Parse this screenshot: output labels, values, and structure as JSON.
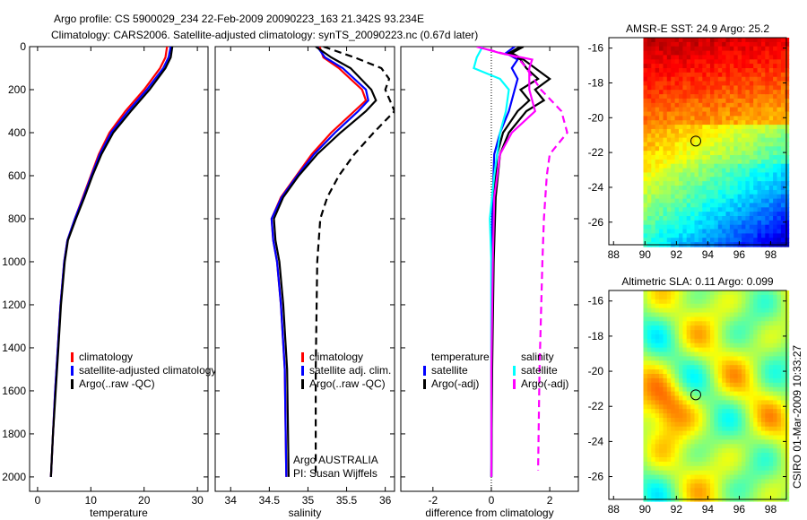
{
  "title_line1": "Argo profile: CS 5900029_234 22-Feb-2009 20090223_163 21.342S 93.234E",
  "title_line2": "Climatology: CARS2006. Satellite-adjusted climatology: synTS_20090223.nc (0.67d later)",
  "side_text": "CSIRO 01-Mar-2009 10:33:27",
  "colors": {
    "clim": "#ff0000",
    "sat": "#0000ff",
    "argo": "#000000",
    "cyan": "#00ffff",
    "magenta": "#ff00ff"
  },
  "chart_data": [
    {
      "type": "line",
      "xlabel": "temperature",
      "ylabel": "",
      "xlim": [
        -1.5,
        32
      ],
      "ylim": [
        2067,
        0
      ],
      "xticks": [
        0,
        10,
        20,
        30
      ],
      "yticks": [
        0,
        200,
        400,
        600,
        800,
        1000,
        1200,
        1400,
        1600,
        1800,
        2000
      ],
      "legend": [
        "climatology",
        "satellite-adjusted climatology",
        "Argo(..raw -QC)"
      ],
      "series": [
        {
          "name": "climatology",
          "color": "clim",
          "dash": false,
          "depth": [
            0,
            50,
            100,
            200,
            300,
            400,
            500,
            600,
            700,
            800,
            900,
            1000,
            1200,
            1400,
            1600,
            1800,
            2000
          ],
          "values": [
            24.3,
            24,
            23,
            20,
            16.5,
            13.5,
            11.5,
            10,
            8.5,
            7,
            5.6,
            5,
            4.3,
            3.8,
            3.3,
            2.9,
            2.5
          ]
        },
        {
          "name": "satellite-adjusted climatology",
          "color": "sat",
          "dash": false,
          "depth": [
            0,
            50,
            100,
            200,
            300,
            400,
            500,
            600,
            700,
            800,
            900,
            1000,
            1200,
            1400,
            1600,
            1800,
            2000
          ],
          "values": [
            25,
            24.6,
            23.6,
            20.5,
            17,
            13.8,
            11.7,
            10.1,
            8.6,
            7,
            5.6,
            5,
            4.3,
            3.8,
            3.3,
            2.9,
            2.5
          ]
        },
        {
          "name": "Argo(..raw -QC)",
          "color": "argo",
          "dash": false,
          "depth": [
            0,
            50,
            100,
            200,
            300,
            400,
            500,
            600,
            700,
            800,
            900,
            1000,
            1200,
            1400,
            1600,
            1800,
            2000
          ],
          "values": [
            25.3,
            25,
            24,
            21,
            17.5,
            14.2,
            12,
            10.3,
            8.8,
            7.2,
            5.7,
            5.1,
            4.4,
            3.9,
            3.4,
            2.9,
            2.5
          ]
        }
      ]
    },
    {
      "type": "line",
      "xlabel": "salinity",
      "xlim": [
        33.8,
        36.12
      ],
      "ylim": [
        2067,
        0
      ],
      "xticks": [
        34,
        34.5,
        35,
        35.5,
        36
      ],
      "legend": [
        "climatology",
        "satellite adj. clim.",
        "Argo(..raw -QC)"
      ],
      "annotation": [
        "Argo AUSTRALIA",
        "PI: Susan Wijffels"
      ],
      "series": [
        {
          "name": "climatology",
          "color": "clim",
          "dash": false,
          "depth": [
            0,
            50,
            100,
            200,
            250,
            300,
            400,
            500,
            600,
            700,
            800,
            900,
            1000,
            1200,
            1500,
            2000
          ],
          "values": [
            35.15,
            35.2,
            35.4,
            35.7,
            35.75,
            35.6,
            35.3,
            35.05,
            34.85,
            34.65,
            34.53,
            34.55,
            34.6,
            34.65,
            34.7,
            34.72
          ]
        },
        {
          "name": "satellite adj. clim.",
          "color": "sat",
          "dash": false,
          "depth": [
            0,
            50,
            100,
            200,
            250,
            300,
            400,
            500,
            600,
            700,
            800,
            900,
            1000,
            1200,
            1500,
            2000
          ],
          "values": [
            35.12,
            35.22,
            35.45,
            35.75,
            35.78,
            35.65,
            35.35,
            35.08,
            34.86,
            34.66,
            34.53,
            34.55,
            34.6,
            34.65,
            34.7,
            34.72
          ]
        },
        {
          "name": "Argo",
          "color": "argo",
          "dash": false,
          "depth": [
            0,
            50,
            100,
            200,
            250,
            300,
            400,
            500,
            600,
            700,
            800,
            900,
            1000,
            1200,
            1500,
            2000
          ],
          "values": [
            35.1,
            35.3,
            35.55,
            35.82,
            35.88,
            35.75,
            35.42,
            35.12,
            34.88,
            34.68,
            34.56,
            34.58,
            34.63,
            34.68,
            34.73,
            34.75
          ]
        },
        {
          "name": "Argo(..raw -QC)",
          "color": "argo",
          "dash": true,
          "depth": [
            0,
            50,
            100,
            150,
            200,
            300,
            400,
            500,
            600,
            700,
            800,
            1000,
            1500,
            2000
          ],
          "values": [
            35.2,
            35.6,
            35.95,
            36.05,
            36.0,
            36.12,
            35.85,
            35.6,
            35.4,
            35.25,
            35.16,
            35.12,
            35.1,
            35.1
          ]
        }
      ]
    },
    {
      "type": "line",
      "xlabel": "difference from climatology",
      "xlim": [
        -3.1,
        2.98
      ],
      "ylim": [
        2067,
        0
      ],
      "xticks": [
        -2,
        0,
        2
      ],
      "legend_temperature": [
        "temperature",
        "satellite",
        "Argo(-adj)"
      ],
      "legend_salinity": [
        "salinity",
        "satellite",
        "Argo(-adj)"
      ],
      "series": [
        {
          "name": "temp satellite",
          "color": "sat",
          "dash": false,
          "depth": [
            0,
            30,
            60,
            100,
            150,
            200,
            300,
            400,
            500,
            700,
            1000,
            1500,
            2000
          ],
          "values": [
            0.8,
            0.5,
            0.9,
            0.7,
            0.9,
            0.8,
            0.6,
            0.3,
            0.1,
            0.05,
            0,
            0,
            0
          ]
        },
        {
          "name": "temp Argo",
          "color": "argo",
          "dash": false,
          "depth": [
            0,
            30,
            60,
            100,
            150,
            200,
            250,
            300,
            400,
            500,
            700,
            1000,
            1500,
            2000
          ],
          "values": [
            1.0,
            0.6,
            1.0,
            1.2,
            1.6,
            1.0,
            1.3,
            0.9,
            0.4,
            0.2,
            0.1,
            0.05,
            0.02,
            0
          ]
        },
        {
          "name": "temp Argo raw",
          "color": "argo",
          "dash": false,
          "depth": [
            0,
            30,
            60,
            100,
            150,
            200,
            250,
            300,
            400,
            500,
            700,
            1000,
            1500,
            2000
          ],
          "values": [
            1.1,
            0.7,
            1.1,
            1.5,
            2.0,
            1.5,
            1.8,
            1.2,
            0.6,
            0.3,
            0.15,
            0.08,
            0.03,
            0
          ]
        },
        {
          "name": "sal satellite",
          "color": "cyan",
          "dash": false,
          "depth": [
            0,
            50,
            100,
            150,
            200,
            300,
            400,
            600,
            800,
            1000,
            1500,
            2000
          ],
          "values": [
            -0.3,
            -0.5,
            -0.6,
            0.3,
            0.6,
            0.5,
            0.3,
            0.1,
            -0.05,
            0,
            0,
            0
          ]
        },
        {
          "name": "sal Argo-adj",
          "color": "magenta",
          "dash": false,
          "depth": [
            0,
            30,
            60,
            100,
            200,
            300,
            400,
            500,
            700,
            1000,
            1500,
            2000
          ],
          "values": [
            -0.5,
            0.3,
            1.4,
            1.3,
            1.3,
            1.5,
            0.7,
            0.3,
            0.1,
            0.05,
            0,
            0
          ]
        },
        {
          "name": "sal Argo raw",
          "color": "magenta",
          "dash": true,
          "depth": [
            0,
            50,
            100,
            200,
            300,
            400,
            500,
            600,
            800,
            1000,
            1500,
            1970
          ],
          "values": [
            -0.5,
            0.9,
            1.2,
            1.7,
            2.4,
            2.6,
            2.0,
            1.9,
            1.8,
            1.75,
            1.65,
            1.6
          ]
        }
      ]
    },
    {
      "type": "heatmap",
      "title": "AMSR-E SST: 24.9 Argo: 25.2",
      "xlim": [
        87.7,
        99.0
      ],
      "ylim": [
        -27.3,
        -15.4
      ],
      "xticks": [
        88,
        90,
        92,
        94,
        96,
        98
      ],
      "yticks": [
        -16,
        -18,
        -20,
        -22,
        -24,
        -26
      ],
      "marker": {
        "lon": 93.234,
        "lat": -21.342
      }
    },
    {
      "type": "heatmap",
      "title": "Altimetric SLA: 0.11 Argo: 0.099",
      "xlim": [
        87.7,
        99.0
      ],
      "ylim": [
        -27.3,
        -15.4
      ],
      "xticks": [
        88,
        90,
        92,
        94,
        96,
        98
      ],
      "yticks": [
        -16,
        -18,
        -20,
        -22,
        -24,
        -26
      ],
      "marker": {
        "lon": 93.234,
        "lat": -21.342
      }
    }
  ]
}
